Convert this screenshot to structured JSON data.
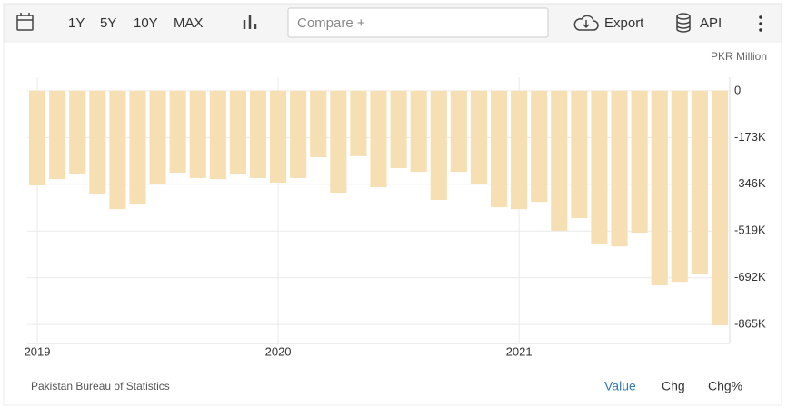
{
  "ui": {
    "ranges": [
      "1Y",
      "5Y",
      "10Y",
      "MAX"
    ],
    "compare": "Compare +",
    "export": "Export",
    "api": "API",
    "source": "Pakistan Bureau of Statistics",
    "views": [
      "Value",
      "Chg",
      "Chg%"
    ]
  },
  "chart_data": {
    "type": "bar",
    "unit": "PKR Million",
    "color": "#f6dfb2",
    "categories": [
      "2019",
      null,
      null,
      null,
      null,
      null,
      null,
      null,
      null,
      null,
      null,
      null,
      "2020",
      null,
      null,
      null,
      null,
      null,
      null,
      null,
      null,
      null,
      null,
      null,
      "2021",
      null,
      null,
      null,
      null,
      null,
      null,
      null,
      null,
      null,
      null
    ],
    "values": [
      -350000,
      -327000,
      -307000,
      -381000,
      -438000,
      -421000,
      -347000,
      -303000,
      -323000,
      -327000,
      -307000,
      -323000,
      -340000,
      -323000,
      -246000,
      -377000,
      -242000,
      -357000,
      -286000,
      -300000,
      -404000,
      -300000,
      -347000,
      -431000,
      -438000,
      -411000,
      -518000,
      -471000,
      -565000,
      -576000,
      -525000,
      -720000,
      -707000,
      -677000,
      -868000
    ],
    "ylim": [
      -935000,
      50000
    ],
    "yticks": [
      0,
      {
        "value": -173000,
        "label": "-173K"
      },
      {
        "value": -346000,
        "label": "-346K"
      },
      {
        "value": -519000,
        "label": "-519K"
      },
      {
        "value": -692000,
        "label": "-692K"
      },
      {
        "value": -865000,
        "label": "-865K"
      }
    ],
    "grid": true
  }
}
